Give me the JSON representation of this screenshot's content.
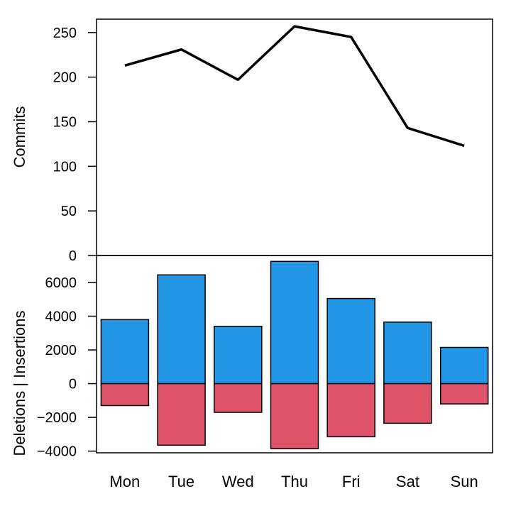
{
  "chart_data": [
    {
      "type": "line",
      "categories": [
        "Mon",
        "Tue",
        "Wed",
        "Thu",
        "Fri",
        "Sat",
        "Sun"
      ],
      "series": [
        {
          "values": [
            213,
            231,
            197,
            257,
            245,
            143,
            123
          ]
        }
      ],
      "ylabel": "Commits",
      "yticks": [
        0,
        50,
        100,
        150,
        200,
        250
      ],
      "ylim": [
        0,
        265
      ],
      "color": "#000000"
    },
    {
      "type": "bar",
      "categories": [
        "Mon",
        "Tue",
        "Wed",
        "Thu",
        "Fri",
        "Sat",
        "Sun"
      ],
      "series": [
        {
          "values": [
            3800,
            6450,
            3400,
            7250,
            5050,
            3650,
            2150
          ],
          "color": "#2297E6"
        },
        {
          "values": [
            -1300,
            -3650,
            -1700,
            -3850,
            -3150,
            -2350,
            -1200
          ],
          "color": "#DF536B"
        }
      ],
      "ylabel": "Deletions | Insertions",
      "yticks": [
        -4000,
        -2000,
        0,
        2000,
        4000,
        6000
      ],
      "ylim": [
        -4100,
        7600
      ],
      "xtick_labels": [
        "Mon",
        "Tue",
        "Wed",
        "Thu",
        "Fri",
        "Sat",
        "Sun"
      ]
    }
  ]
}
